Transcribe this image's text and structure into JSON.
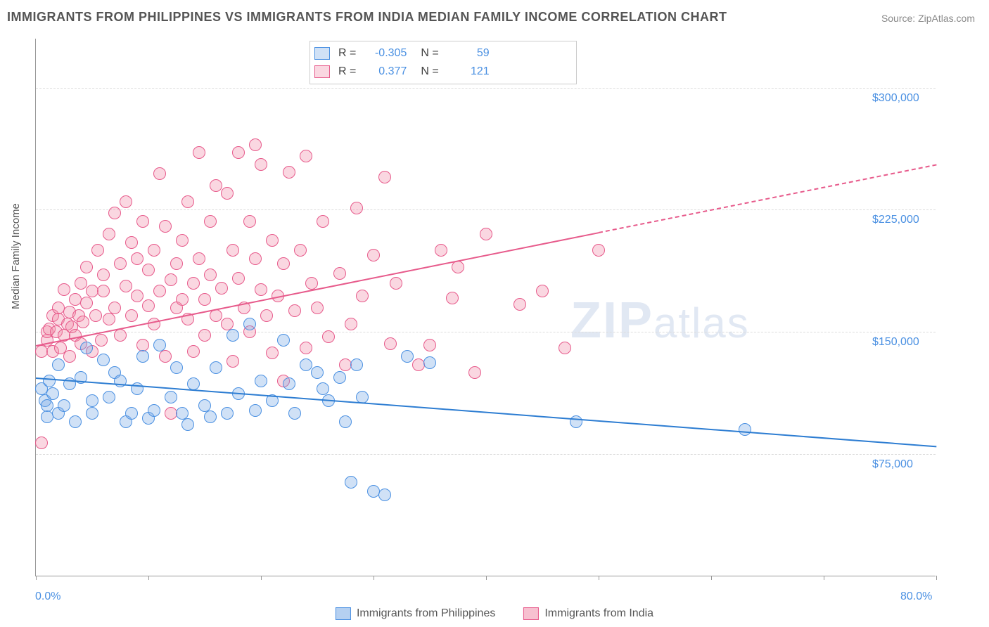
{
  "title": "IMMIGRANTS FROM PHILIPPINES VS IMMIGRANTS FROM INDIA MEDIAN FAMILY INCOME CORRELATION CHART",
  "source_label": "Source:",
  "source_name": "ZipAtlas.com",
  "y_axis_label": "Median Family Income",
  "watermark_zip": "ZIP",
  "watermark_atlas": "atlas",
  "chart": {
    "type": "scatter",
    "xlim": [
      0,
      80
    ],
    "ylim": [
      0,
      330000
    ],
    "x_ticks": [
      0,
      10,
      20,
      30,
      40,
      50,
      60,
      70,
      80
    ],
    "x_tick_labels_shown": {
      "0": "0.0%",
      "80": "80.0%"
    },
    "y_gridlines": [
      75000,
      150000,
      225000,
      300000
    ],
    "y_tick_labels": {
      "75000": "$75,000",
      "150000": "$150,000",
      "225000": "$225,000",
      "300000": "$300,000"
    },
    "background_color": "#ffffff",
    "grid_color": "#dddddd",
    "axis_color": "#999999",
    "label_color_blue": "#4a90e2",
    "marker_radius": 9,
    "marker_border_width": 1.5
  },
  "series": [
    {
      "name": "Immigrants from Philippines",
      "color_fill": "rgba(120,170,230,0.35)",
      "color_stroke": "#4a90e2",
      "trend_color": "#2d7dd2",
      "R": "-0.305",
      "N": "59",
      "trend": {
        "x1": 0,
        "y1": 122000,
        "x2": 80,
        "y2": 80000,
        "solid_to_x": 80
      },
      "points": [
        [
          0.5,
          115000
        ],
        [
          0.8,
          108000
        ],
        [
          1,
          105000
        ],
        [
          1,
          98000
        ],
        [
          1.2,
          120000
        ],
        [
          1.5,
          112000
        ],
        [
          2,
          130000
        ],
        [
          2,
          100000
        ],
        [
          2.5,
          105000
        ],
        [
          3,
          118000
        ],
        [
          3.5,
          95000
        ],
        [
          4,
          122000
        ],
        [
          4.5,
          140000
        ],
        [
          5,
          108000
        ],
        [
          5,
          100000
        ],
        [
          6,
          133000
        ],
        [
          6.5,
          110000
        ],
        [
          7,
          125000
        ],
        [
          7.5,
          120000
        ],
        [
          8,
          95000
        ],
        [
          8.5,
          100000
        ],
        [
          9,
          115000
        ],
        [
          9.5,
          135000
        ],
        [
          10,
          97000
        ],
        [
          10.5,
          102000
        ],
        [
          11,
          142000
        ],
        [
          12,
          110000
        ],
        [
          12.5,
          128000
        ],
        [
          13,
          100000
        ],
        [
          13.5,
          93000
        ],
        [
          14,
          118000
        ],
        [
          15,
          105000
        ],
        [
          15.5,
          98000
        ],
        [
          16,
          128000
        ],
        [
          17,
          100000
        ],
        [
          17.5,
          148000
        ],
        [
          18,
          112000
        ],
        [
          19,
          155000
        ],
        [
          19.5,
          102000
        ],
        [
          20,
          120000
        ],
        [
          21,
          108000
        ],
        [
          22,
          145000
        ],
        [
          22.5,
          118000
        ],
        [
          23,
          100000
        ],
        [
          24,
          130000
        ],
        [
          25,
          125000
        ],
        [
          25.5,
          115000
        ],
        [
          26,
          108000
        ],
        [
          27,
          122000
        ],
        [
          27.5,
          95000
        ],
        [
          28,
          58000
        ],
        [
          28.5,
          130000
        ],
        [
          29,
          110000
        ],
        [
          30,
          52000
        ],
        [
          31,
          50000
        ],
        [
          33,
          135000
        ],
        [
          35,
          131000
        ],
        [
          48,
          95000
        ],
        [
          63,
          90000
        ]
      ]
    },
    {
      "name": "Immigrants from India",
      "color_fill": "rgba(240,140,170,0.35)",
      "color_stroke": "#e75a8b",
      "trend_color": "#e75a8b",
      "R": "0.377",
      "N": "121",
      "trend": {
        "x1": 0,
        "y1": 142000,
        "x2": 80,
        "y2": 253000,
        "solid_to_x": 50
      },
      "points": [
        [
          0.5,
          138000
        ],
        [
          0.5,
          82000
        ],
        [
          1,
          145000
        ],
        [
          1,
          150000
        ],
        [
          1.2,
          152000
        ],
        [
          1.5,
          160000
        ],
        [
          1.5,
          138000
        ],
        [
          1.8,
          150000
        ],
        [
          2,
          158000
        ],
        [
          2,
          165000
        ],
        [
          2.2,
          140000
        ],
        [
          2.5,
          148000
        ],
        [
          2.5,
          176000
        ],
        [
          2.8,
          155000
        ],
        [
          3,
          162000
        ],
        [
          3,
          135000
        ],
        [
          3.2,
          153000
        ],
        [
          3.5,
          170000
        ],
        [
          3.5,
          148000
        ],
        [
          3.8,
          160000
        ],
        [
          4,
          180000
        ],
        [
          4,
          143000
        ],
        [
          4.2,
          156000
        ],
        [
          4.5,
          168000
        ],
        [
          4.5,
          190000
        ],
        [
          5,
          175000
        ],
        [
          5,
          138000
        ],
        [
          5.3,
          160000
        ],
        [
          5.5,
          200000
        ],
        [
          5.8,
          145000
        ],
        [
          6,
          175000
        ],
        [
          6,
          185000
        ],
        [
          6.5,
          158000
        ],
        [
          6.5,
          210000
        ],
        [
          7,
          223000
        ],
        [
          7,
          165000
        ],
        [
          7.5,
          192000
        ],
        [
          7.5,
          148000
        ],
        [
          8,
          178000
        ],
        [
          8,
          230000
        ],
        [
          8.5,
          160000
        ],
        [
          8.5,
          205000
        ],
        [
          9,
          172000
        ],
        [
          9,
          195000
        ],
        [
          9.5,
          218000
        ],
        [
          9.5,
          142000
        ],
        [
          10,
          166000
        ],
        [
          10,
          188000
        ],
        [
          10.5,
          200000
        ],
        [
          10.5,
          155000
        ],
        [
          11,
          247000
        ],
        [
          11,
          175000
        ],
        [
          11.5,
          135000
        ],
        [
          11.5,
          215000
        ],
        [
          12,
          182000
        ],
        [
          12,
          100000
        ],
        [
          12.5,
          192000
        ],
        [
          12.5,
          165000
        ],
        [
          13,
          170000
        ],
        [
          13,
          206000
        ],
        [
          13.5,
          158000
        ],
        [
          13.5,
          230000
        ],
        [
          14,
          180000
        ],
        [
          14,
          138000
        ],
        [
          14.5,
          260000
        ],
        [
          14.5,
          195000
        ],
        [
          15,
          148000
        ],
        [
          15,
          170000
        ],
        [
          15.5,
          218000
        ],
        [
          15.5,
          185000
        ],
        [
          16,
          160000
        ],
        [
          16,
          240000
        ],
        [
          16.5,
          177000
        ],
        [
          17,
          235000
        ],
        [
          17,
          155000
        ],
        [
          17.5,
          200000
        ],
        [
          17.5,
          132000
        ],
        [
          18,
          260000
        ],
        [
          18,
          183000
        ],
        [
          18.5,
          165000
        ],
        [
          19,
          218000
        ],
        [
          19,
          150000
        ],
        [
          19.5,
          265000
        ],
        [
          19.5,
          195000
        ],
        [
          20,
          176000
        ],
        [
          20,
          253000
        ],
        [
          20.5,
          160000
        ],
        [
          21,
          137000
        ],
        [
          21,
          206000
        ],
        [
          21.5,
          172000
        ],
        [
          22,
          192000
        ],
        [
          22,
          120000
        ],
        [
          22.5,
          248000
        ],
        [
          23,
          163000
        ],
        [
          23.5,
          200000
        ],
        [
          24,
          258000
        ],
        [
          24,
          140000
        ],
        [
          24.5,
          180000
        ],
        [
          25,
          165000
        ],
        [
          25.5,
          218000
        ],
        [
          26,
          147000
        ],
        [
          27,
          186000
        ],
        [
          27.5,
          130000
        ],
        [
          28,
          155000
        ],
        [
          28.5,
          226000
        ],
        [
          29,
          172000
        ],
        [
          30,
          197000
        ],
        [
          31,
          245000
        ],
        [
          31.5,
          143000
        ],
        [
          32,
          180000
        ],
        [
          34,
          130000
        ],
        [
          35,
          142000
        ],
        [
          36,
          200000
        ],
        [
          37,
          171000
        ],
        [
          37.5,
          190000
        ],
        [
          39,
          125000
        ],
        [
          40,
          210000
        ],
        [
          43,
          167000
        ],
        [
          45,
          175000
        ],
        [
          47,
          140000
        ],
        [
          50,
          200000
        ]
      ]
    }
  ],
  "legend_bottom": [
    {
      "label": "Immigrants from Philippines",
      "fill": "rgba(120,170,230,0.55)",
      "stroke": "#4a90e2"
    },
    {
      "label": "Immigrants from India",
      "fill": "rgba(240,140,170,0.55)",
      "stroke": "#e75a8b"
    }
  ]
}
